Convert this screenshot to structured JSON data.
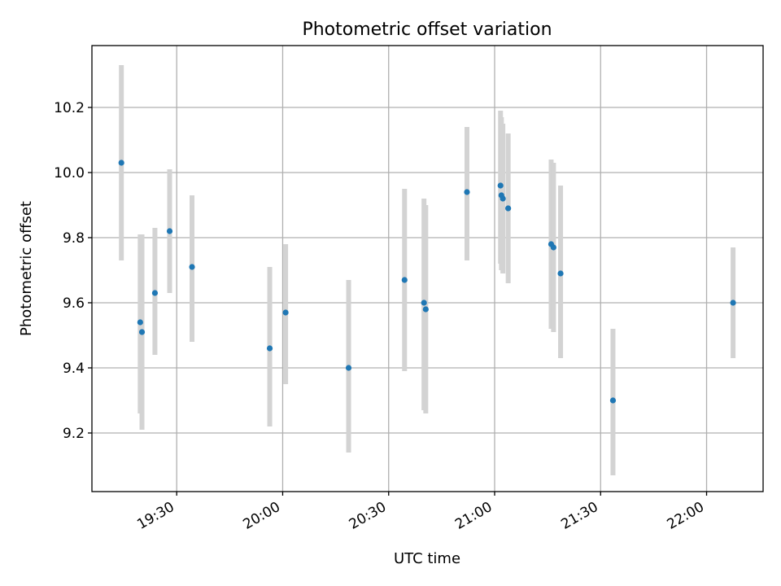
{
  "chart_data": {
    "type": "scatter",
    "title": "Photometric offset variation",
    "xlabel": "UTC time",
    "ylabel": "Photometric offset",
    "xlim": [
      "19:06",
      "22:16"
    ],
    "ylim": [
      9.02,
      10.39
    ],
    "x_ticks": [
      "19:30",
      "20:00",
      "20:30",
      "21:00",
      "21:30",
      "22:00"
    ],
    "y_ticks": [
      9.2,
      9.4,
      9.6,
      9.8,
      10.0,
      10.2
    ],
    "grid": true,
    "colors": {
      "point": "#1f77b4",
      "error_bar": "#d3d3d3"
    },
    "points": [
      {
        "time": "19:14:20",
        "y": 10.03,
        "err_low": 9.73,
        "err_high": 10.33
      },
      {
        "time": "19:19:40",
        "y": 9.54,
        "err_low": 9.26,
        "err_high": 9.81
      },
      {
        "time": "19:20:10",
        "y": 9.51,
        "err_low": 9.21,
        "err_high": 9.81
      },
      {
        "time": "19:23:50",
        "y": 9.63,
        "err_low": 9.44,
        "err_high": 9.83
      },
      {
        "time": "19:28:00",
        "y": 9.82,
        "err_low": 9.63,
        "err_high": 10.01
      },
      {
        "time": "19:34:20",
        "y": 9.71,
        "err_low": 9.48,
        "err_high": 9.93
      },
      {
        "time": "19:56:20",
        "y": 9.46,
        "err_low": 9.22,
        "err_high": 9.71
      },
      {
        "time": "20:00:50",
        "y": 9.57,
        "err_low": 9.35,
        "err_high": 9.78
      },
      {
        "time": "20:18:40",
        "y": 9.4,
        "err_low": 9.14,
        "err_high": 9.67
      },
      {
        "time": "20:34:30",
        "y": 9.67,
        "err_low": 9.39,
        "err_high": 9.95
      },
      {
        "time": "20:40:00",
        "y": 9.6,
        "err_low": 9.27,
        "err_high": 9.92
      },
      {
        "time": "20:40:30",
        "y": 9.58,
        "err_low": 9.26,
        "err_high": 9.9
      },
      {
        "time": "20:52:10",
        "y": 9.94,
        "err_low": 9.73,
        "err_high": 10.14
      },
      {
        "time": "21:01:40",
        "y": 9.96,
        "err_low": 9.72,
        "err_high": 10.19
      },
      {
        "time": "21:01:55",
        "y": 9.93,
        "err_low": 9.7,
        "err_high": 10.17
      },
      {
        "time": "21:02:20",
        "y": 9.92,
        "err_low": 9.69,
        "err_high": 10.15
      },
      {
        "time": "21:03:50",
        "y": 9.89,
        "err_low": 9.66,
        "err_high": 10.12
      },
      {
        "time": "21:16:00",
        "y": 9.78,
        "err_low": 9.52,
        "err_high": 10.04
      },
      {
        "time": "21:16:40",
        "y": 9.77,
        "err_low": 9.51,
        "err_high": 10.03
      },
      {
        "time": "21:18:40",
        "y": 9.69,
        "err_low": 9.43,
        "err_high": 9.96
      },
      {
        "time": "21:33:30",
        "y": 9.3,
        "err_low": 9.07,
        "err_high": 9.52
      },
      {
        "time": "22:07:30",
        "y": 9.6,
        "err_low": 9.43,
        "err_high": 9.77
      }
    ]
  }
}
